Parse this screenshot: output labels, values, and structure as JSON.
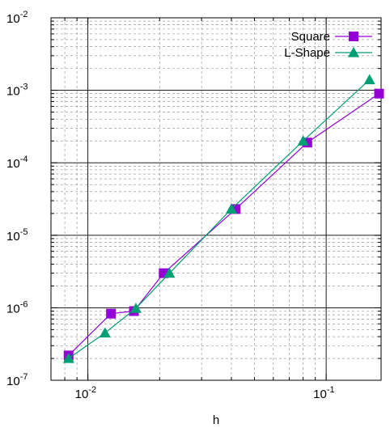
{
  "chart_data": {
    "type": "line",
    "xlabel": "h",
    "ylabel": "",
    "title": "",
    "x_scale": "log",
    "y_scale": "log",
    "xlim": [
      0.007,
      0.17
    ],
    "ylim": [
      1e-07,
      0.01
    ],
    "grid": true,
    "legend_position": "top-right",
    "x_ticks": [
      {
        "value": 0.01,
        "base": "10",
        "exp": "-2"
      },
      {
        "value": 0.1,
        "base": "10",
        "exp": "-1"
      }
    ],
    "y_ticks": [
      {
        "value": 1e-07,
        "base": "10",
        "exp": "-7"
      },
      {
        "value": 1e-06,
        "base": "10",
        "exp": "-6"
      },
      {
        "value": 1e-05,
        "base": "10",
        "exp": "-5"
      },
      {
        "value": 0.0001,
        "base": "10",
        "exp": "-4"
      },
      {
        "value": 0.001,
        "base": "10",
        "exp": "-3"
      },
      {
        "value": 0.01,
        "base": "10",
        "exp": "-2"
      }
    ],
    "series": [
      {
        "name": "Square",
        "color": "#9400d3",
        "marker": "square",
        "x": [
          0.0083,
          0.0125,
          0.0156,
          0.0208,
          0.0417,
          0.0833,
          0.1667
        ],
        "y": [
          2.2e-07,
          8.3e-07,
          9e-07,
          3e-06,
          2.3e-05,
          0.00019,
          0.0009
        ]
      },
      {
        "name": "L-Shape",
        "color": "#009e73",
        "marker": "triangle",
        "x": [
          0.0083,
          0.0118,
          0.0159,
          0.022,
          0.04,
          0.08,
          0.152
        ],
        "y": [
          2e-07,
          4.5e-07,
          9.8e-07,
          3e-06,
          2.3e-05,
          0.0002,
          0.0014
        ]
      }
    ]
  }
}
